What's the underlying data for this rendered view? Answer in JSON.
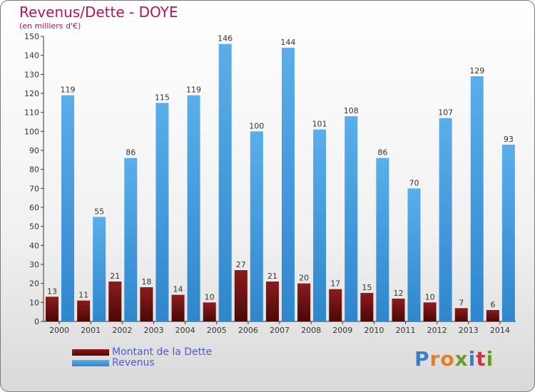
{
  "header": {
    "title": "Revenus/Dette - DOYE",
    "subtitle": "(en milliers d'€)"
  },
  "legend": {
    "dette_label": "Montant de la Dette",
    "revenus_label": "Revenus"
  },
  "logo": {
    "letters": [
      "P",
      "r",
      "o",
      "x",
      "i",
      "t",
      "i"
    ],
    "colors": [
      "#3a7fc8",
      "#e0802a",
      "#e0802a",
      "#6a9c2c",
      "#3a7fc8",
      "#cc3344",
      "#6a9c2c"
    ]
  },
  "colors": {
    "dette": "#7a1414",
    "revenus": "#4a9ee0",
    "title": "#b4145a"
  },
  "chart_data": {
    "type": "bar",
    "title": "Revenus/Dette - DOYE",
    "ylabel": "(en milliers d'€)",
    "categories": [
      "2000",
      "2001",
      "2002",
      "2003",
      "2004",
      "2005",
      "2006",
      "2007",
      "2008",
      "2009",
      "2010",
      "2011",
      "2012",
      "2013",
      "2014"
    ],
    "series": [
      {
        "name": "Montant de la Dette",
        "values": [
          13,
          11,
          21,
          18,
          14,
          10,
          27,
          21,
          20,
          17,
          15,
          12,
          10,
          7,
          6
        ]
      },
      {
        "name": "Revenus",
        "values": [
          119,
          55,
          86,
          115,
          119,
          146,
          100,
          144,
          101,
          108,
          86,
          70,
          107,
          129,
          93
        ]
      }
    ],
    "ylim": [
      0,
      150
    ],
    "yticks": [
      0,
      10,
      20,
      30,
      40,
      50,
      60,
      70,
      80,
      90,
      100,
      110,
      120,
      130,
      140,
      150
    ],
    "grid": false,
    "legend_position": "bottom-left"
  }
}
